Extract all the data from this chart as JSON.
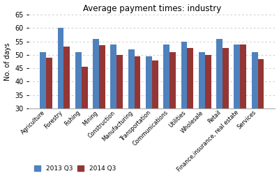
{
  "title": "Average payment times: industry",
  "categories": [
    "Agriculture",
    "Forestry",
    "Fishing",
    "Mining",
    "Construction",
    "Manufacturing",
    "Transportation",
    "Communications",
    "Utilities",
    "Wholesale",
    "Retail",
    "Finance,insurance, real estate",
    "Services"
  ],
  "series_2013": [
    51,
    60,
    51,
    56,
    54,
    52,
    49.5,
    54,
    55,
    51,
    56,
    54,
    51
  ],
  "series_2014": [
    49,
    53,
    45.5,
    53.5,
    50,
    49.5,
    48,
    51,
    52.5,
    50,
    52.5,
    54,
    48.5
  ],
  "color_2013": "#4F81BD",
  "color_2014": "#943634",
  "ylabel": "No. of days",
  "ymin": 30,
  "ylim": [
    30,
    65
  ],
  "yticks": [
    30,
    35,
    40,
    45,
    50,
    55,
    60,
    65
  ],
  "legend_2013": "2013 Q3",
  "legend_2014": "2014 Q3",
  "background_color": "#FFFFFF",
  "grid_color": "#BBBBBB"
}
